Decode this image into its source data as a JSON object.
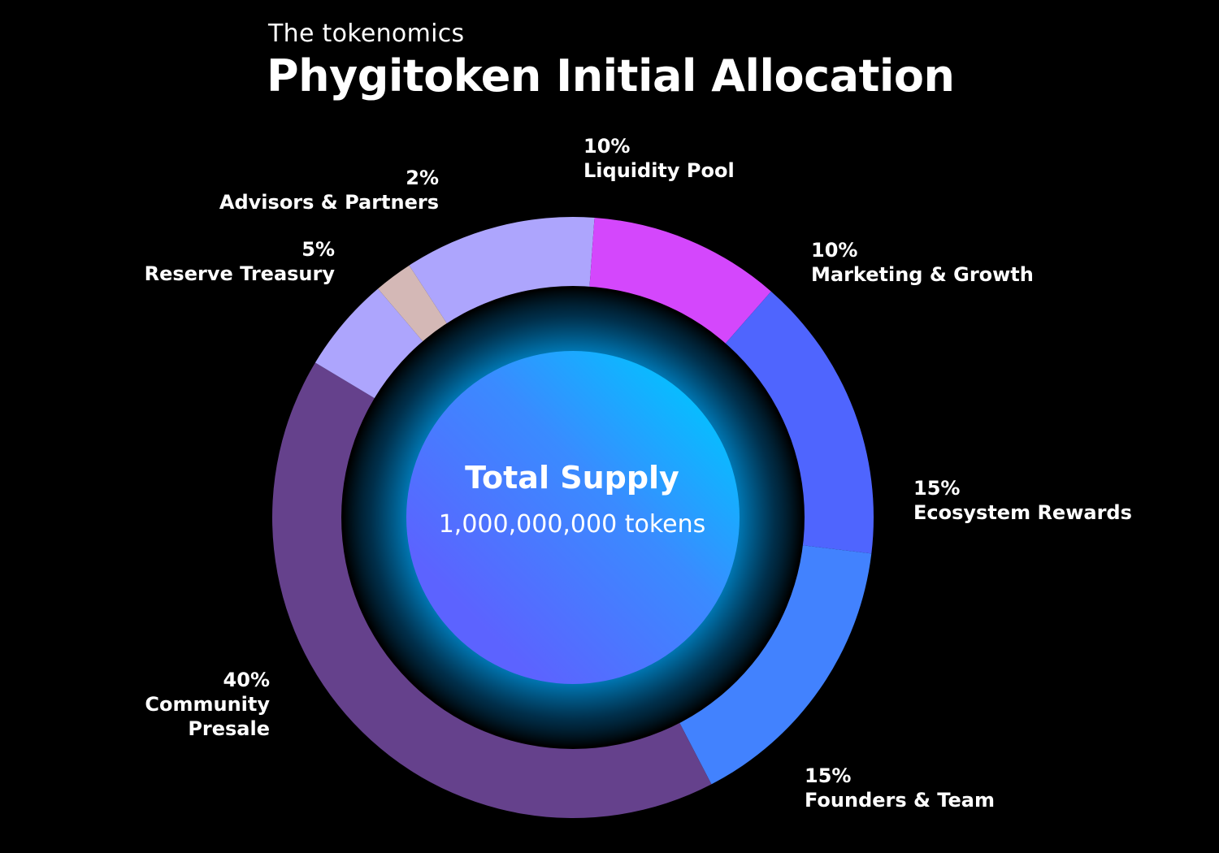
{
  "header": {
    "subtitle": "The tokenomics",
    "title": "Phygitoken Initial Allocation"
  },
  "center": {
    "title": "Total Supply",
    "subtitle": "1,000,000,000 tokens"
  },
  "chart_data": {
    "type": "pie",
    "title": "Phygitoken Initial Allocation",
    "total_supply": "1,000,000,000 tokens",
    "slices": [
      {
        "percent_label": "10%",
        "label": "Liquidity Pool",
        "value": 10,
        "color": "#ADA5FD"
      },
      {
        "percent_label": "10%",
        "label": "Marketing & Growth",
        "value": 10,
        "color": "#D447FC"
      },
      {
        "percent_label": "15%",
        "label": "Ecosystem Rewards",
        "value": 15,
        "color": "#4F65FE"
      },
      {
        "percent_label": "15%",
        "label": "Founders & Team",
        "value": 15,
        "color": "#4282FE"
      },
      {
        "percent_label": "40%",
        "label": "Community Presale",
        "value": 40,
        "color": "#65418C"
      },
      {
        "percent_label": "5%",
        "label": "Reserve Treasury",
        "value": 5,
        "color": "#ADA5FD"
      },
      {
        "percent_label": "2%",
        "label": "Advisors & Partners",
        "value": 2,
        "color": "#D4B8B6"
      }
    ]
  }
}
